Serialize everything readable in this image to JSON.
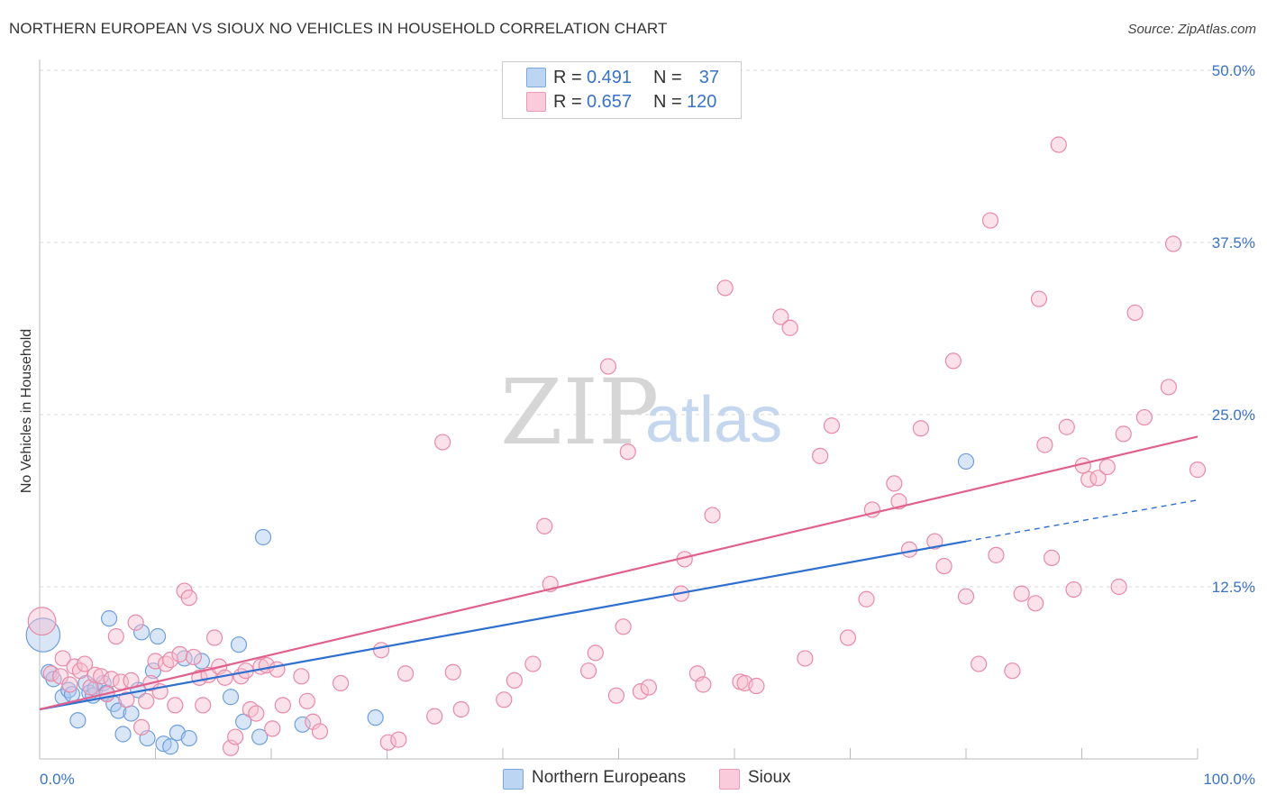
{
  "title": "NORTHERN EUROPEAN VS SIOUX NO VEHICLES IN HOUSEHOLD CORRELATION CHART",
  "source": "Source: ZipAtlas.com",
  "watermark": {
    "zip": "ZIP",
    "atlas": "atlas"
  },
  "legend": {
    "rows": [
      {
        "r_label": "R =",
        "r_value": "0.491",
        "n_label": "N =",
        "n_value": "37"
      },
      {
        "r_label": "R =",
        "r_value": "0.657",
        "n_label": "N =",
        "n_value": "120"
      }
    ]
  },
  "colors": {
    "blue_fill": "#a9c8f0",
    "blue_stroke": "#6f9fdc",
    "blue_line": "#2e6fcf",
    "pink_fill": "#f6bfd0",
    "pink_stroke": "#e98aa8",
    "pink_line": "#e0608e",
    "grid": "#d8d8d8",
    "axis_text": "#3a73c6"
  },
  "chart_data": {
    "type": "scatter",
    "title": "NORTHERN EUROPEAN VS SIOUX NO VEHICLES IN HOUSEHOLD CORRELATION CHART",
    "xlabel": "",
    "ylabel": "No Vehicles in Household",
    "xlim": [
      0,
      100
    ],
    "ylim": [
      0,
      50
    ],
    "x_tick_labels": [
      "0.0%",
      "100.0%"
    ],
    "y_ticks": [
      12.5,
      25.0,
      37.5,
      50.0
    ],
    "y_tick_labels": [
      "12.5%",
      "25.0%",
      "37.5%",
      "50.0%"
    ],
    "grid": true,
    "series": [
      {
        "name": "Northern Europeans",
        "color": "blue",
        "r": 0.491,
        "n": 37,
        "trend": {
          "x0": 0,
          "y0": 3.6,
          "x1": 80,
          "y1": 15.8,
          "dash_x1": 100,
          "dash_y1": 18.8
        },
        "points": [
          [
            0.3,
            9.0,
            2.2
          ],
          [
            0.8,
            6.3,
            1
          ],
          [
            1.2,
            5.8,
            1
          ],
          [
            2.0,
            4.5,
            1
          ],
          [
            2.5,
            5.0,
            1
          ],
          [
            2.8,
            4.7,
            1
          ],
          [
            3.3,
            2.8,
            1
          ],
          [
            4.0,
            5.5,
            1
          ],
          [
            4.3,
            4.8,
            1
          ],
          [
            4.6,
            4.6,
            1
          ],
          [
            4.8,
            5.1,
            1
          ],
          [
            5.5,
            5.5,
            1
          ],
          [
            5.8,
            4.8,
            1
          ],
          [
            6.0,
            10.2,
            1
          ],
          [
            6.4,
            4.0,
            1
          ],
          [
            6.8,
            3.5,
            1
          ],
          [
            7.2,
            1.8,
            1
          ],
          [
            7.9,
            3.3,
            1
          ],
          [
            8.5,
            5.0,
            1
          ],
          [
            8.8,
            9.2,
            1
          ],
          [
            9.3,
            1.5,
            1
          ],
          [
            9.8,
            6.4,
            1
          ],
          [
            10.2,
            8.9,
            1
          ],
          [
            10.7,
            1.1,
            1
          ],
          [
            11.3,
            0.9,
            1
          ],
          [
            11.9,
            1.9,
            1
          ],
          [
            12.5,
            7.3,
            1
          ],
          [
            12.9,
            1.5,
            1
          ],
          [
            14.0,
            7.1,
            1
          ],
          [
            16.5,
            4.5,
            1
          ],
          [
            17.2,
            8.3,
            1
          ],
          [
            17.6,
            2.7,
            1
          ],
          [
            19.0,
            1.6,
            1
          ],
          [
            19.3,
            16.1,
            1
          ],
          [
            22.7,
            2.5,
            1
          ],
          [
            29.0,
            3.0,
            1
          ],
          [
            80.0,
            21.6,
            1
          ]
        ]
      },
      {
        "name": "Sioux",
        "color": "pink",
        "r": 0.657,
        "n": 120,
        "trend": {
          "x0": 0,
          "y0": 3.6,
          "x1": 100,
          "y1": 23.4
        },
        "points": [
          [
            0.2,
            10.0,
            1.8
          ],
          [
            1.0,
            6.2,
            1
          ],
          [
            1.8,
            6.0,
            1
          ],
          [
            2.0,
            7.3,
            1
          ],
          [
            2.6,
            5.4,
            1
          ],
          [
            3.0,
            6.7,
            1
          ],
          [
            3.5,
            6.4,
            1
          ],
          [
            3.9,
            6.9,
            1
          ],
          [
            4.4,
            5.2,
            1
          ],
          [
            4.8,
            6.1,
            1
          ],
          [
            5.3,
            6.0,
            1
          ],
          [
            5.8,
            4.7,
            1
          ],
          [
            6.2,
            5.8,
            1
          ],
          [
            6.6,
            8.9,
            1
          ],
          [
            7.0,
            5.6,
            1
          ],
          [
            7.5,
            4.3,
            1
          ],
          [
            7.9,
            5.7,
            1
          ],
          [
            8.3,
            9.9,
            1
          ],
          [
            8.8,
            2.3,
            1
          ],
          [
            9.2,
            4.2,
            1
          ],
          [
            9.6,
            5.5,
            1
          ],
          [
            10.0,
            7.1,
            1
          ],
          [
            10.4,
            4.9,
            1
          ],
          [
            10.9,
            6.9,
            1
          ],
          [
            11.3,
            7.2,
            1
          ],
          [
            11.7,
            3.9,
            1
          ],
          [
            12.1,
            7.6,
            1
          ],
          [
            12.5,
            12.2,
            1
          ],
          [
            12.9,
            11.7,
            1
          ],
          [
            13.3,
            7.4,
            1
          ],
          [
            13.8,
            5.9,
            1
          ],
          [
            14.1,
            3.9,
            1
          ],
          [
            14.6,
            6.1,
            1
          ],
          [
            15.1,
            8.8,
            1
          ],
          [
            15.5,
            6.7,
            1
          ],
          [
            16.0,
            5.9,
            1
          ],
          [
            16.5,
            0.8,
            1
          ],
          [
            16.9,
            1.6,
            1
          ],
          [
            17.4,
            6.0,
            1
          ],
          [
            17.8,
            6.4,
            1
          ],
          [
            18.2,
            3.6,
            1
          ],
          [
            18.7,
            3.3,
            1
          ],
          [
            19.1,
            6.7,
            1
          ],
          [
            19.6,
            6.8,
            1
          ],
          [
            20.1,
            2.2,
            1
          ],
          [
            20.5,
            6.5,
            1
          ],
          [
            21.0,
            3.9,
            1
          ],
          [
            22.6,
            6.0,
            1
          ],
          [
            23.1,
            4.2,
            1
          ],
          [
            23.6,
            2.7,
            1
          ],
          [
            24.2,
            2.0,
            1
          ],
          [
            26.0,
            5.5,
            1
          ],
          [
            29.5,
            7.9,
            1
          ],
          [
            30.1,
            1.2,
            1
          ],
          [
            31.0,
            1.4,
            1
          ],
          [
            31.6,
            6.2,
            1
          ],
          [
            34.1,
            3.1,
            1
          ],
          [
            34.8,
            23.0,
            1
          ],
          [
            35.7,
            6.3,
            1
          ],
          [
            36.4,
            3.6,
            1
          ],
          [
            40.1,
            4.3,
            1
          ],
          [
            41.0,
            5.7,
            1
          ],
          [
            42.6,
            6.9,
            1
          ],
          [
            43.6,
            16.9,
            1
          ],
          [
            44.1,
            12.7,
            1
          ],
          [
            47.4,
            6.4,
            1
          ],
          [
            48.0,
            7.7,
            1
          ],
          [
            49.1,
            28.5,
            1
          ],
          [
            49.8,
            4.6,
            1
          ],
          [
            50.4,
            9.6,
            1
          ],
          [
            50.8,
            22.3,
            1
          ],
          [
            51.9,
            4.9,
            1
          ],
          [
            52.6,
            5.2,
            1
          ],
          [
            55.4,
            12.0,
            1
          ],
          [
            55.7,
            14.5,
            1
          ],
          [
            56.8,
            6.2,
            1
          ],
          [
            57.3,
            5.4,
            1
          ],
          [
            58.1,
            17.7,
            1
          ],
          [
            59.2,
            34.2,
            1
          ],
          [
            60.5,
            5.6,
            1
          ],
          [
            60.9,
            5.5,
            1
          ],
          [
            61.9,
            5.3,
            1
          ],
          [
            64.0,
            32.1,
            1
          ],
          [
            64.8,
            31.3,
            1
          ],
          [
            66.1,
            7.3,
            1
          ],
          [
            67.4,
            22.0,
            1
          ],
          [
            68.4,
            24.2,
            1
          ],
          [
            69.8,
            8.8,
            1
          ],
          [
            71.4,
            11.6,
            1
          ],
          [
            71.9,
            18.1,
            1
          ],
          [
            73.8,
            20.0,
            1
          ],
          [
            74.2,
            18.7,
            1
          ],
          [
            75.1,
            15.2,
            1
          ],
          [
            76.1,
            24.0,
            1
          ],
          [
            77.3,
            15.8,
            1
          ],
          [
            78.1,
            14.0,
            1
          ],
          [
            78.9,
            28.9,
            1
          ],
          [
            80.0,
            11.8,
            1
          ],
          [
            81.1,
            6.9,
            1
          ],
          [
            82.1,
            39.1,
            1
          ],
          [
            82.6,
            14.8,
            1
          ],
          [
            84.0,
            6.4,
            1
          ],
          [
            84.8,
            12.0,
            1
          ],
          [
            86.0,
            11.3,
            1
          ],
          [
            86.3,
            33.4,
            1
          ],
          [
            86.8,
            22.8,
            1
          ],
          [
            87.4,
            14.6,
            1
          ],
          [
            88.0,
            44.6,
            1
          ],
          [
            88.7,
            24.1,
            1
          ],
          [
            89.3,
            12.3,
            1
          ],
          [
            90.1,
            21.3,
            1
          ],
          [
            90.6,
            20.3,
            1
          ],
          [
            91.4,
            20.4,
            1
          ],
          [
            92.2,
            21.2,
            1
          ],
          [
            93.2,
            12.5,
            1
          ],
          [
            93.6,
            23.6,
            1
          ],
          [
            94.6,
            32.4,
            1
          ],
          [
            95.4,
            24.8,
            1
          ],
          [
            97.5,
            27.0,
            1
          ],
          [
            97.9,
            37.4,
            1
          ],
          [
            100.0,
            21.0,
            1
          ]
        ]
      }
    ]
  }
}
